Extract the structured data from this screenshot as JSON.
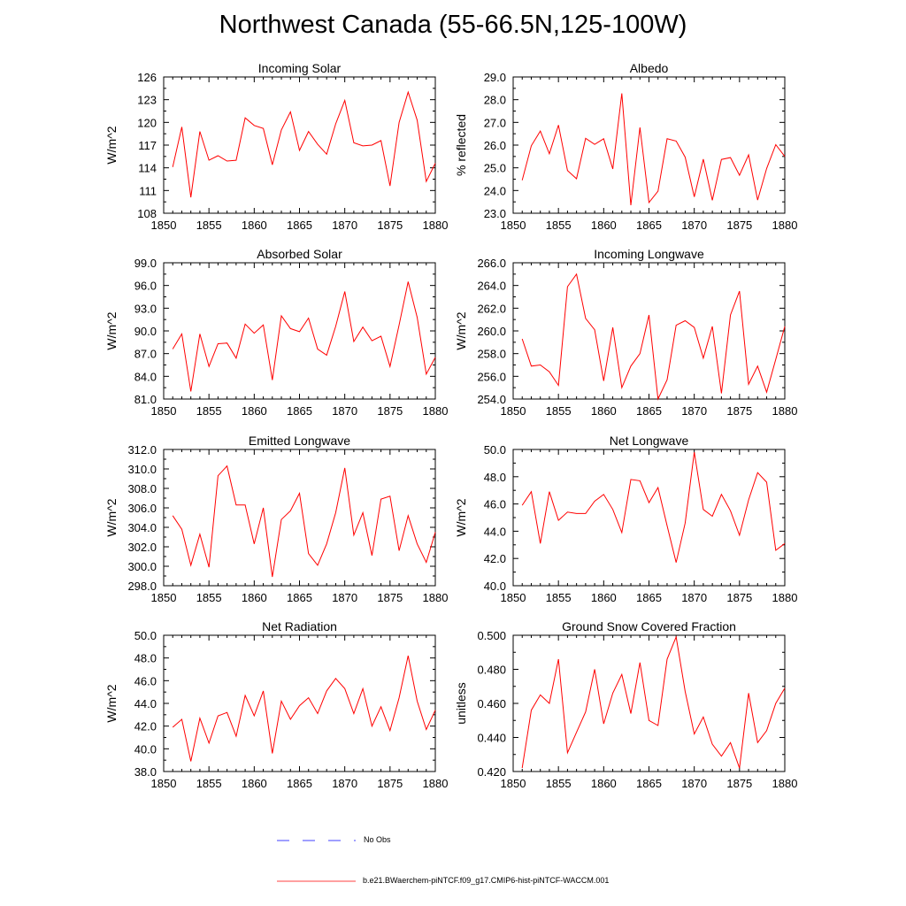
{
  "title": "Northwest Canada (55-66.5N,125-100W)",
  "legend": {
    "no_obs_label": "No Obs",
    "no_obs_color": "#0000ff",
    "model_label": "b.e21.BWaerchem-piNTCF.f09_g17.CMIP6-hist-piNTCF-WACCM.001",
    "model_color": "#ff0000"
  },
  "chart_data": [
    {
      "type": "line",
      "title": "Incoming Solar",
      "ylabel": "W/m^2",
      "xlim": [
        1850,
        1880
      ],
      "ylim": [
        108,
        126
      ],
      "xticks": [
        "1850",
        "1855",
        "1860",
        "1865",
        "1870",
        "1875",
        "1880"
      ],
      "yticks": [
        "108",
        "111",
        "114",
        "117",
        "120",
        "123",
        "126"
      ],
      "x": [
        1851,
        1852,
        1853,
        1854,
        1855,
        1856,
        1857,
        1858,
        1859,
        1860,
        1861,
        1862,
        1863,
        1864,
        1865,
        1866,
        1867,
        1868,
        1869,
        1870,
        1871,
        1872,
        1873,
        1874,
        1875,
        1876,
        1877,
        1878,
        1879,
        1880
      ],
      "series": [
        {
          "values": [
            114.1,
            119.4,
            110.1,
            118.8,
            115.0,
            115.6,
            114.9,
            115.0,
            120.6,
            119.6,
            119.2,
            114.4,
            119.0,
            121.4,
            116.3,
            118.8,
            117.1,
            115.8,
            119.8,
            122.9,
            117.3,
            116.9,
            117.0,
            117.6,
            111.6,
            120.0,
            124.0,
            120.3,
            112.2,
            114.6
          ]
        }
      ]
    },
    {
      "type": "line",
      "title": "Albedo",
      "ylabel": "% reflected",
      "xlim": [
        1850,
        1880
      ],
      "ylim": [
        23.0,
        29.0
      ],
      "xticks": [
        "1850",
        "1855",
        "1860",
        "1865",
        "1870",
        "1875",
        "1880"
      ],
      "yticks": [
        "23.0",
        "24.0",
        "25.0",
        "26.0",
        "27.0",
        "28.0",
        "29.0"
      ],
      "x": [
        1851,
        1852,
        1853,
        1854,
        1855,
        1856,
        1857,
        1858,
        1859,
        1860,
        1861,
        1862,
        1863,
        1864,
        1865,
        1866,
        1867,
        1868,
        1869,
        1870,
        1871,
        1872,
        1873,
        1874,
        1875,
        1876,
        1877,
        1878,
        1879,
        1880
      ],
      "series": [
        {
          "values": [
            24.45,
            25.97,
            26.62,
            25.62,
            26.88,
            24.88,
            24.52,
            26.3,
            26.03,
            26.28,
            24.95,
            28.28,
            23.35,
            26.78,
            23.47,
            23.97,
            26.28,
            26.18,
            25.47,
            23.72,
            25.38,
            23.57,
            25.37,
            25.45,
            24.67,
            25.57,
            23.58,
            24.97,
            26.02,
            25.5
          ]
        }
      ]
    },
    {
      "type": "line",
      "title": "Absorbed Solar",
      "ylabel": "W/m^2",
      "xlim": [
        1850,
        1880
      ],
      "ylim": [
        81.0,
        99.0
      ],
      "xticks": [
        "1850",
        "1855",
        "1860",
        "1865",
        "1870",
        "1875",
        "1880"
      ],
      "yticks": [
        "81.0",
        "84.0",
        "87.0",
        "90.0",
        "93.0",
        "96.0",
        "99.0"
      ],
      "x": [
        1851,
        1852,
        1853,
        1854,
        1855,
        1856,
        1857,
        1858,
        1859,
        1860,
        1861,
        1862,
        1863,
        1864,
        1865,
        1866,
        1867,
        1868,
        1869,
        1870,
        1871,
        1872,
        1873,
        1874,
        1875,
        1876,
        1877,
        1878,
        1879,
        1880
      ],
      "series": [
        {
          "values": [
            87.6,
            89.6,
            82.0,
            89.6,
            85.3,
            88.3,
            88.4,
            86.4,
            90.9,
            89.7,
            90.8,
            83.5,
            92.0,
            90.3,
            89.9,
            91.7,
            87.6,
            86.8,
            90.6,
            95.2,
            88.6,
            90.5,
            88.7,
            89.3,
            85.3,
            90.8,
            96.5,
            91.8,
            84.3,
            86.5
          ]
        }
      ]
    },
    {
      "type": "line",
      "title": "Incoming Longwave",
      "ylabel": "W/m^2",
      "xlim": [
        1850,
        1880
      ],
      "ylim": [
        254.0,
        266.0
      ],
      "xticks": [
        "1850",
        "1855",
        "1860",
        "1865",
        "1870",
        "1875",
        "1880"
      ],
      "yticks": [
        "254.0",
        "256.0",
        "258.0",
        "260.0",
        "262.0",
        "264.0",
        "266.0"
      ],
      "x": [
        1851,
        1852,
        1853,
        1854,
        1855,
        1856,
        1857,
        1858,
        1859,
        1860,
        1861,
        1862,
        1863,
        1864,
        1865,
        1866,
        1867,
        1868,
        1869,
        1870,
        1871,
        1872,
        1873,
        1874,
        1875,
        1876,
        1877,
        1878,
        1879,
        1880
      ],
      "series": [
        {
          "values": [
            259.3,
            256.9,
            257.0,
            256.4,
            255.2,
            263.9,
            265.0,
            261.1,
            260.1,
            255.6,
            260.3,
            255.0,
            256.9,
            258.0,
            261.4,
            254.0,
            255.7,
            260.5,
            260.9,
            260.3,
            257.6,
            260.4,
            254.5,
            261.4,
            263.5,
            255.3,
            256.9,
            254.6,
            257.5,
            260.4
          ]
        }
      ]
    },
    {
      "type": "line",
      "title": "Emitted Longwave",
      "ylabel": "W/m^2",
      "xlim": [
        1850,
        1880
      ],
      "ylim": [
        298.0,
        312.0
      ],
      "xticks": [
        "1850",
        "1855",
        "1860",
        "1865",
        "1870",
        "1875",
        "1880"
      ],
      "yticks": [
        "298.0",
        "300.0",
        "302.0",
        "304.0",
        "306.0",
        "308.0",
        "310.0",
        "312.0"
      ],
      "x": [
        1851,
        1852,
        1853,
        1854,
        1855,
        1856,
        1857,
        1858,
        1859,
        1860,
        1861,
        1862,
        1863,
        1864,
        1865,
        1866,
        1867,
        1868,
        1869,
        1870,
        1871,
        1872,
        1873,
        1874,
        1875,
        1876,
        1877,
        1878,
        1879,
        1880
      ],
      "series": [
        {
          "values": [
            305.2,
            303.8,
            300.1,
            303.3,
            299.9,
            309.3,
            310.3,
            306.3,
            306.3,
            302.3,
            306.0,
            298.9,
            304.8,
            305.7,
            307.5,
            301.3,
            300.1,
            302.3,
            305.5,
            310.1,
            303.2,
            305.5,
            301.1,
            306.9,
            307.2,
            301.6,
            305.2,
            302.3,
            300.4,
            303.5
          ]
        }
      ]
    },
    {
      "type": "line",
      "title": "Net Longwave",
      "ylabel": "W/m^2",
      "xlim": [
        1850,
        1880
      ],
      "ylim": [
        40.0,
        50.0
      ],
      "xticks": [
        "1850",
        "1855",
        "1860",
        "1865",
        "1870",
        "1875",
        "1880"
      ],
      "yticks": [
        "40.0",
        "42.0",
        "44.0",
        "46.0",
        "48.0",
        "50.0"
      ],
      "x": [
        1851,
        1852,
        1853,
        1854,
        1855,
        1856,
        1857,
        1858,
        1859,
        1860,
        1861,
        1862,
        1863,
        1864,
        1865,
        1866,
        1867,
        1868,
        1869,
        1870,
        1871,
        1872,
        1873,
        1874,
        1875,
        1876,
        1877,
        1878,
        1879,
        1880
      ],
      "series": [
        {
          "values": [
            45.9,
            46.9,
            43.1,
            46.9,
            44.8,
            45.4,
            45.3,
            45.3,
            46.2,
            46.7,
            45.6,
            43.9,
            47.8,
            47.7,
            46.1,
            47.2,
            44.4,
            41.7,
            44.6,
            49.8,
            45.6,
            45.1,
            46.7,
            45.5,
            43.7,
            46.3,
            48.3,
            47.6,
            42.6,
            43.1
          ]
        }
      ]
    },
    {
      "type": "line",
      "title": "Net Radiation",
      "ylabel": "W/m^2",
      "xlim": [
        1850,
        1880
      ],
      "ylim": [
        38.0,
        50.0
      ],
      "xticks": [
        "1850",
        "1855",
        "1860",
        "1865",
        "1870",
        "1875",
        "1880"
      ],
      "yticks": [
        "38.0",
        "40.0",
        "42.0",
        "44.0",
        "46.0",
        "48.0",
        "50.0"
      ],
      "x": [
        1851,
        1852,
        1853,
        1854,
        1855,
        1856,
        1857,
        1858,
        1859,
        1860,
        1861,
        1862,
        1863,
        1864,
        1865,
        1866,
        1867,
        1868,
        1869,
        1870,
        1871,
        1872,
        1873,
        1874,
        1875,
        1876,
        1877,
        1878,
        1879,
        1880
      ],
      "series": [
        {
          "values": [
            41.9,
            42.6,
            38.9,
            42.7,
            40.5,
            42.9,
            43.2,
            41.1,
            44.7,
            42.9,
            45.1,
            39.6,
            44.2,
            42.6,
            43.8,
            44.5,
            43.1,
            45.1,
            46.2,
            45.3,
            43.1,
            45.3,
            42.0,
            43.7,
            41.6,
            44.5,
            48.2,
            44.2,
            41.7,
            43.4
          ]
        }
      ]
    },
    {
      "type": "line",
      "title": "Ground Snow Covered Fraction",
      "ylabel": "unitless",
      "xlim": [
        1850,
        1880
      ],
      "ylim": [
        0.42,
        0.5
      ],
      "xticks": [
        "1850",
        "1855",
        "1860",
        "1865",
        "1870",
        "1875",
        "1880"
      ],
      "yticks": [
        "0.420",
        "0.440",
        "0.460",
        "0.480",
        "0.500"
      ],
      "x": [
        1851,
        1852,
        1853,
        1854,
        1855,
        1856,
        1857,
        1858,
        1859,
        1860,
        1861,
        1862,
        1863,
        1864,
        1865,
        1866,
        1867,
        1868,
        1869,
        1870,
        1871,
        1872,
        1873,
        1874,
        1875,
        1876,
        1877,
        1878,
        1879,
        1880
      ],
      "series": [
        {
          "values": [
            0.422,
            0.456,
            0.465,
            0.46,
            0.486,
            0.431,
            0.443,
            0.455,
            0.48,
            0.448,
            0.466,
            0.477,
            0.454,
            0.484,
            0.45,
            0.447,
            0.486,
            0.499,
            0.467,
            0.442,
            0.452,
            0.436,
            0.429,
            0.437,
            0.422,
            0.466,
            0.437,
            0.444,
            0.46,
            0.469
          ]
        }
      ]
    }
  ]
}
